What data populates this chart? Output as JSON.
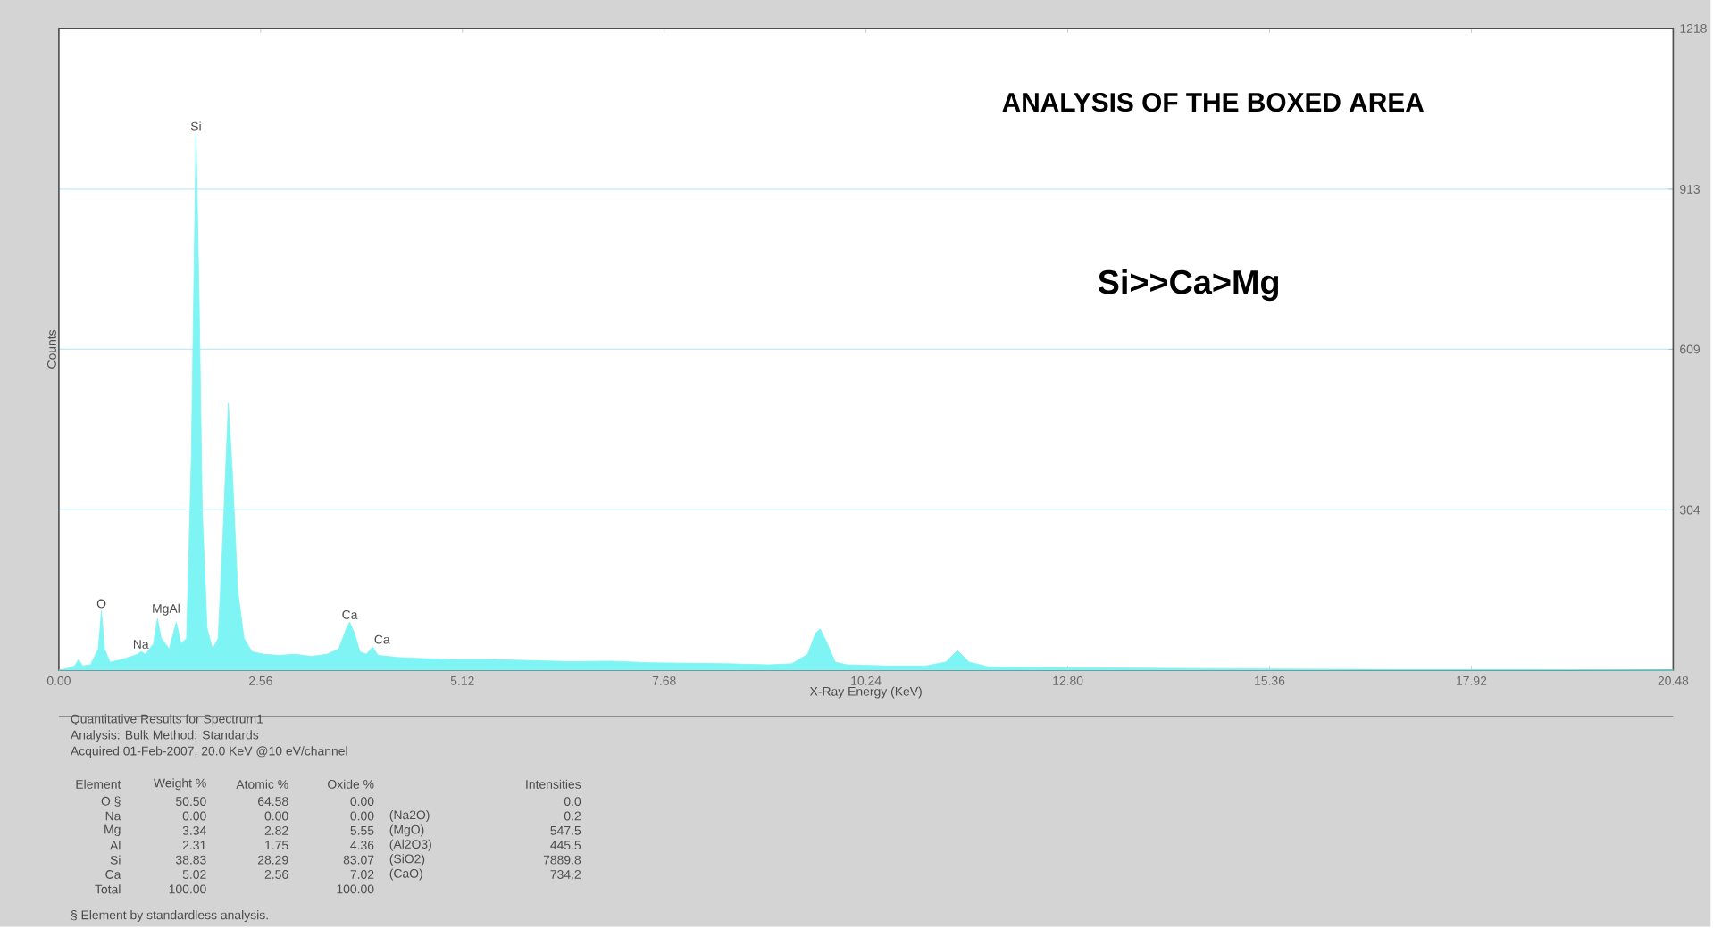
{
  "chart_data": {
    "type": "area",
    "title": "ANALYSIS OF THE BOXED AREA",
    "xlabel": "X-Ray Energy (KeV)",
    "ylabel": "Counts",
    "x": [
      0.0,
      0.1,
      0.2,
      0.25,
      0.3,
      0.4,
      0.5,
      0.54,
      0.58,
      0.65,
      0.8,
      0.9,
      1.0,
      1.04,
      1.1,
      1.2,
      1.25,
      1.3,
      1.4,
      1.49,
      1.55,
      1.62,
      1.68,
      1.74,
      1.78,
      1.82,
      1.88,
      1.95,
      2.02,
      2.08,
      2.15,
      2.2,
      2.27,
      2.35,
      2.45,
      2.6,
      2.8,
      3.0,
      3.2,
      3.4,
      3.55,
      3.65,
      3.69,
      3.75,
      3.82,
      3.9,
      3.98,
      4.05,
      4.3,
      4.6,
      5.0,
      5.5,
      6.0,
      6.5,
      7.0,
      7.5,
      8.0,
      8.5,
      9.0,
      9.3,
      9.5,
      9.6,
      9.66,
      9.75,
      9.85,
      10.0,
      10.5,
      11.0,
      11.25,
      11.4,
      11.55,
      11.8,
      12.5,
      13.5,
      14.5,
      15.5,
      17.0,
      18.5,
      20.48
    ],
    "series": [
      {
        "color": "#7ff4f4",
        "values": [
          0,
          3,
          8,
          20,
          8,
          10,
          40,
          112,
          40,
          15,
          20,
          25,
          30,
          35,
          30,
          50,
          98,
          60,
          40,
          91,
          50,
          60,
          400,
          1018,
          700,
          300,
          80,
          40,
          60,
          250,
          507,
          380,
          150,
          60,
          35,
          30,
          28,
          30,
          26,
          30,
          40,
          80,
          91,
          70,
          35,
          30,
          44,
          28,
          24,
          22,
          20,
          20,
          18,
          16,
          17,
          14,
          13,
          12,
          10,
          12,
          30,
          70,
          78,
          50,
          15,
          10,
          8,
          8,
          15,
          37,
          15,
          6,
          5,
          4,
          3,
          2,
          1,
          1,
          0
        ]
      }
    ],
    "xlim": [
      0,
      20.48
    ],
    "ylim": [
      0,
      1218
    ],
    "xticks": [
      {
        "value": 0,
        "label": "0.00"
      },
      2.56,
      5.12,
      7.68,
      10.24,
      {
        "value": 12.8,
        "label": "12.80"
      },
      15.36,
      17.92,
      20.48
    ],
    "yticks": [
      304,
      609,
      913,
      1218
    ],
    "grid": "y",
    "annotations": [
      {
        "text": "Si",
        "x": 1.74,
        "y": 1018
      },
      {
        "text": "O",
        "x": 0.54,
        "y": 112
      },
      {
        "text": "MgAl",
        "x": 1.36,
        "y": 98
      },
      {
        "text": "Na",
        "x": 1.04,
        "y": 35
      },
      {
        "text": "Ca",
        "x": 3.69,
        "y": 91
      },
      {
        "text": "Ca",
        "x": 4.1,
        "y": 44
      },
      "Si>>Ca>Mg",
      "Quantitative Results for Spectrum1",
      "Analysis: Bulk    Method: Standards",
      "Acquired 01-Feb-2007, 20.0 KeV @10 eV/channel",
      "Element",
      "Weight %",
      "Atomic %",
      "Oxide %",
      "Intensities",
      "O §",
      "50.50",
      "64.58",
      "0.00",
      "0.0",
      "Na",
      "0.00",
      "0.00",
      "0.00",
      "(Na2O)",
      "0.2",
      "Mg",
      "3.34",
      "2.82",
      "5.55",
      "(MgO)",
      "547.5",
      "Al",
      "2.31",
      "1.75",
      "4.36",
      "(Al2O3)",
      "445.5",
      "Si",
      "38.83",
      "28.29",
      "83.07",
      "(SiO2)",
      "7889.8",
      "Ca",
      "5.02",
      "2.56",
      "7.02",
      "(CaO)",
      "734.2",
      "Total",
      "100.00",
      "100.00",
      "§ Element by standardless analysis."
    ]
  }
}
